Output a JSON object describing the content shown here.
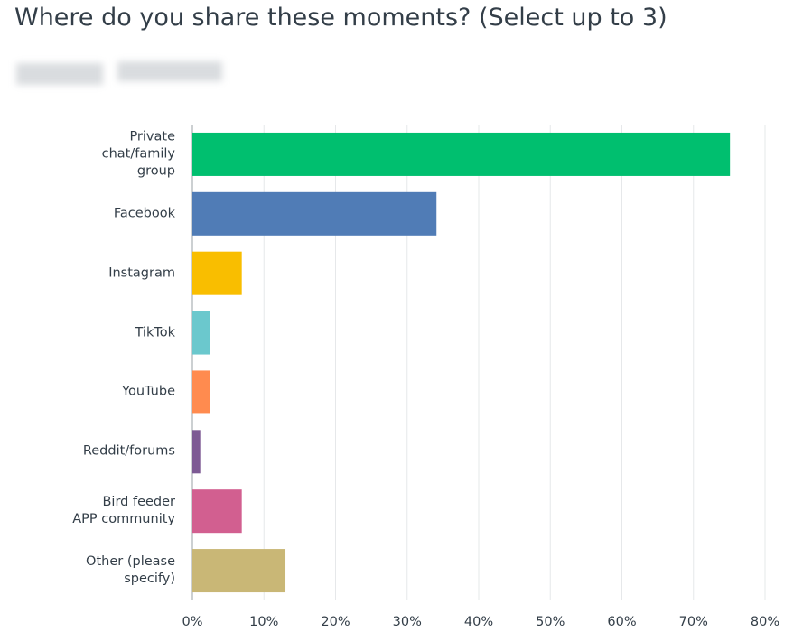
{
  "chart_data": {
    "type": "bar",
    "orientation": "horizontal",
    "title": "Where do you share these moments? (Select up to 3)",
    "categories": [
      "Private\nchat/family\ngroup",
      "Facebook",
      "Instagram",
      "TikTok",
      "YouTube",
      "Reddit/forums",
      "Bird feeder\nAPP community",
      "Other (please\nspecify)"
    ],
    "values": [
      75.1,
      34.1,
      6.9,
      2.4,
      2.4,
      1.1,
      6.9,
      13.0
    ],
    "colors": [
      "#00bf6f",
      "#507cb6",
      "#f9be00",
      "#6bc8cd",
      "#ff8b4f",
      "#7d5a94",
      "#d25f90",
      "#c9b776"
    ],
    "xlim": [
      0,
      80
    ],
    "xticks": [
      {
        "value": 0,
        "label": "0%"
      },
      {
        "value": 10,
        "label": "10%"
      },
      {
        "value": 20,
        "label": "20%"
      },
      {
        "value": 30,
        "label": "30%"
      },
      {
        "value": 40,
        "label": "40%"
      },
      {
        "value": 50,
        "label": "50%"
      },
      {
        "value": 60,
        "label": "60%"
      },
      {
        "value": 70,
        "label": "70%"
      },
      {
        "value": 80,
        "label": "80%"
      }
    ],
    "grid": true
  }
}
